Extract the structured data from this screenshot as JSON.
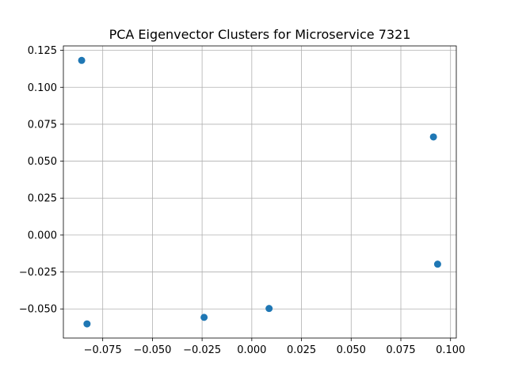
{
  "chart_data": {
    "type": "scatter",
    "title": "PCA Eigenvector Clusters for Microservice 7321",
    "xlabel": "",
    "ylabel": "",
    "xlim": [
      -0.0948,
      0.1029
    ],
    "ylim": [
      -0.0697,
      0.128
    ],
    "grid": true,
    "marker_color": "#1f77b4",
    "x_ticks": [
      -0.075,
      -0.05,
      -0.025,
      0.0,
      0.025,
      0.05,
      0.075,
      0.1
    ],
    "x_tick_labels": [
      "−0.075",
      "−0.050",
      "−0.025",
      "0.000",
      "0.025",
      "0.050",
      "0.075",
      "0.100"
    ],
    "y_ticks": [
      -0.05,
      -0.025,
      0.0,
      0.025,
      0.05,
      0.075,
      0.1,
      0.125
    ],
    "y_tick_labels": [
      "−0.050",
      "−0.025",
      "0.000",
      "0.025",
      "0.050",
      "0.075",
      "0.100",
      "0.125"
    ],
    "points": [
      {
        "x": -0.0856,
        "y": 0.1182
      },
      {
        "x": -0.0829,
        "y": -0.0601
      },
      {
        "x": -0.024,
        "y": -0.0557
      },
      {
        "x": 0.0087,
        "y": -0.0497
      },
      {
        "x": 0.0914,
        "y": 0.0664
      },
      {
        "x": 0.0935,
        "y": -0.0197
      }
    ]
  }
}
